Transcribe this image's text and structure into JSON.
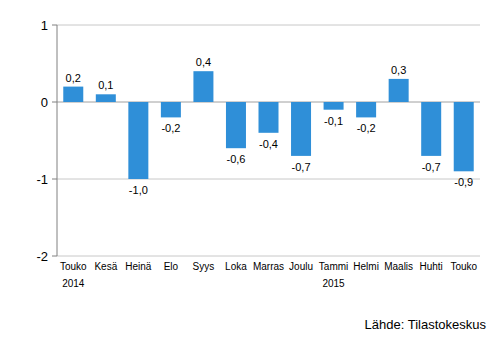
{
  "chart_data": {
    "type": "bar",
    "categories": [
      "Touko",
      "Kesä",
      "Heinä",
      "Elo",
      "Syys",
      "Loka",
      "Marras",
      "Joulu",
      "Tammi",
      "Helmi",
      "Maalis",
      "Huhti",
      "Touko"
    ],
    "year_labels": [
      "2014",
      null,
      null,
      null,
      null,
      null,
      null,
      null,
      "2015",
      null,
      null,
      null,
      null
    ],
    "values": [
      0.2,
      0.1,
      -1.0,
      -0.2,
      0.4,
      -0.6,
      -0.4,
      -0.7,
      -0.1,
      -0.2,
      0.3,
      -0.7,
      -0.9
    ],
    "value_labels": [
      "0,2",
      "0,1",
      "-1,0",
      "-0,2",
      "0,4",
      "-0,6",
      "-0,4",
      "-0,7",
      "-0,1",
      "-0,2",
      "0,3",
      "-0,7",
      "-0,9"
    ],
    "data_labels": true,
    "color": "#2f8fd8",
    "ylim": [
      -2,
      1
    ],
    "yticks": [
      -2,
      -1,
      0,
      1
    ],
    "grid": true,
    "source": "Lähde: Tilastokeskus"
  }
}
